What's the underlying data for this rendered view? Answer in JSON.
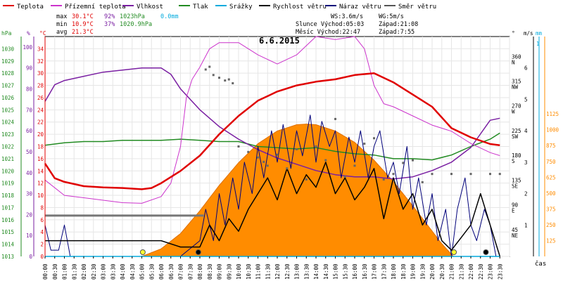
{
  "legend": [
    {
      "label": "Teplota",
      "color": "#e00000"
    },
    {
      "label": "Přízemní teplota",
      "color": "#cc33cc"
    },
    {
      "label": "Vlhkost",
      "color": "#7a1fa2"
    },
    {
      "label": "Tlak",
      "color": "#228b22"
    },
    {
      "label": "Srážky",
      "color": "#00aadd"
    },
    {
      "label": "Rychlost větru",
      "color": "#000000"
    },
    {
      "label": "Náraz větru",
      "color": "#00007a"
    },
    {
      "label": "Směr větru",
      "color": "#555555"
    }
  ],
  "stats": {
    "max_label": "max",
    "max_temp": "30.1°C",
    "max_hum": "92%",
    "max_press": "1023hPa",
    "max_rain": "0.0mm",
    "min_label": "min",
    "min_temp": "10.9°C",
    "min_hum": "37%",
    "min_press": "1020.9hPa",
    "avg_label": "avg",
    "avg_temp": "21.3°C"
  },
  "wind_info": {
    "ws": "WS:3.6m/s",
    "wg": "WG:5m/s"
  },
  "sun_info": {
    "slunce": "Slunce Východ:05:03",
    "slunce_zapad": "Západ:21:08",
    "mesic": "Měsíc Východ:22:47",
    "mesic_zapad": "Západ:7:55"
  },
  "chart_data": {
    "type": "line",
    "title": "6.6.2015",
    "xlabel": "čas",
    "x_ticks": [
      "00:00",
      "00:30",
      "01:00",
      "01:30",
      "02:00",
      "02:30",
      "03:00",
      "03:30",
      "04:00",
      "04:30",
      "05:00",
      "05:30",
      "06:00",
      "06:30",
      "07:00",
      "07:30",
      "08:00",
      "08:30",
      "09:00",
      "09:30",
      "10:00",
      "10:30",
      "11:00",
      "11:30",
      "12:00",
      "12:30",
      "13:00",
      "13:30",
      "14:00",
      "14:30",
      "15:00",
      "15:30",
      "16:00",
      "16:30",
      "17:00",
      "17:30",
      "18:00",
      "18:30",
      "19:00",
      "19:30",
      "20:00",
      "20:30",
      "21:00",
      "21:30",
      "22:00",
      "22:30",
      "23:00",
      "23:30"
    ],
    "axes": {
      "pressure": {
        "label": "hPa",
        "min": 1013,
        "max": 1031,
        "ticks": [
          1013,
          1014,
          1015,
          1016,
          1017,
          1018,
          1019,
          1020,
          1021,
          1022,
          1023,
          1024,
          1025,
          1026,
          1027,
          1028,
          1029,
          1030
        ]
      },
      "humidity": {
        "label": "%",
        "min": 0,
        "max": 105,
        "ticks": [
          0,
          10,
          20,
          30,
          40,
          50,
          60,
          70,
          80,
          90,
          100
        ]
      },
      "temperature": {
        "label": "°C",
        "min": 0,
        "max": 36,
        "ticks": [
          0,
          2,
          4,
          6,
          8,
          10,
          12,
          14,
          16,
          18,
          20,
          22,
          24,
          26,
          28,
          30,
          32,
          34
        ]
      },
      "direction": {
        "label": "°",
        "ticks": [
          {
            "v": 45,
            "n": "NE"
          },
          {
            "v": 90,
            "n": "E"
          },
          {
            "v": 135,
            "n": "SE"
          },
          {
            "v": 180,
            "n": "S"
          },
          {
            "v": 225,
            "n": "SW"
          },
          {
            "v": 270,
            "n": "W"
          },
          {
            "v": 315,
            "n": "NW"
          },
          {
            "v": 360,
            "n": "N"
          }
        ]
      },
      "wind": {
        "label": "m/s",
        "ticks": [
          1,
          2,
          3,
          4,
          5,
          6
        ]
      },
      "rain": {
        "label": "mm",
        "ticks": [
          1
        ]
      },
      "solar": {
        "ticks": [
          125,
          250,
          375,
          500,
          625,
          750,
          875,
          1000,
          1125
        ]
      }
    },
    "series": [
      {
        "name": "Teplota",
        "unit": "°C",
        "x": [
          0,
          0.5,
          1,
          2,
          3,
          4,
          5,
          5.5,
          6,
          7,
          8,
          9,
          10,
          11,
          12,
          13,
          14,
          15,
          16,
          17,
          18,
          19,
          20,
          21,
          22,
          23,
          23.5
        ],
        "y": [
          15.2,
          12.8,
          12.2,
          11.5,
          11.3,
          11.2,
          11.0,
          11.2,
          12.0,
          14.0,
          16.5,
          20.0,
          23.0,
          25.5,
          27.0,
          28.0,
          28.6,
          29.0,
          29.7,
          30.0,
          28.5,
          26.5,
          24.5,
          21.0,
          19.5,
          18.4,
          18.2
        ]
      },
      {
        "name": "Přízemní teplota",
        "unit": "°C",
        "x": [
          0,
          1,
          2,
          3,
          4,
          5,
          6,
          6.5,
          7,
          7.3,
          7.6,
          8,
          8.5,
          9,
          10,
          11,
          12,
          13,
          14,
          15,
          16,
          16.5,
          17,
          17.5,
          18,
          19,
          20,
          21,
          21.5,
          22,
          23,
          23.5
        ],
        "y": [
          12.5,
          10.0,
          9.6,
          9.2,
          8.8,
          8.7,
          9.8,
          12.0,
          18.0,
          26.0,
          29.0,
          31.0,
          34.0,
          35.0,
          35.0,
          33.0,
          31.5,
          33.0,
          36.0,
          35.5,
          36.0,
          34.0,
          28.0,
          25.0,
          24.5,
          23.0,
          21.5,
          20.5,
          19.5,
          18.5,
          17.0,
          16.5
        ]
      },
      {
        "name": "Vlhkost",
        "unit": "%",
        "x": [
          0,
          0.5,
          1,
          2,
          3,
          4,
          5,
          6,
          6.5,
          7,
          8,
          9,
          10,
          11,
          12,
          13,
          14,
          15,
          16,
          17,
          18,
          19,
          20,
          21,
          22,
          23,
          23.5
        ],
        "y": [
          74,
          82,
          84,
          86,
          88,
          89,
          90,
          90,
          87,
          80,
          70,
          62,
          56,
          51,
          47,
          44,
          41,
          39,
          38,
          38,
          37,
          38,
          41,
          45,
          52,
          65,
          66
        ]
      },
      {
        "name": "Tlak",
        "unit": "hPa",
        "x": [
          0,
          1,
          2,
          3,
          4,
          5,
          6,
          7,
          8,
          9,
          10,
          11,
          12,
          13,
          14,
          15,
          16,
          17,
          18,
          19,
          20,
          21,
          22,
          23,
          23.5
        ],
        "y": [
          1022.1,
          1022.3,
          1022.4,
          1022.4,
          1022.5,
          1022.5,
          1022.5,
          1022.6,
          1022.5,
          1022.4,
          1022.4,
          1022.0,
          1021.9,
          1021.8,
          1021.9,
          1021.6,
          1021.4,
          1021.3,
          1021.0,
          1021.0,
          1020.9,
          1021.3,
          1022.0,
          1022.6,
          1023.1
        ]
      },
      {
        "name": "Srážky",
        "unit": "mm",
        "x": [
          0,
          23.5
        ],
        "y": [
          0,
          0
        ]
      },
      {
        "name": "Rychlost větru",
        "unit": "m/s",
        "x": [
          0,
          0.5,
          1,
          2,
          3,
          4,
          5,
          6,
          7,
          8,
          8.5,
          9,
          9.5,
          10,
          10.5,
          11,
          11.5,
          12,
          12.5,
          13,
          13.5,
          14,
          14.5,
          15,
          15.5,
          16,
          16.5,
          17,
          17.5,
          18,
          18.5,
          19,
          19.5,
          20,
          20.5,
          21,
          21.5,
          22,
          22.5,
          23,
          23.5
        ],
        "y": [
          0.5,
          0.5,
          0.5,
          0.5,
          0.5,
          0.5,
          0.5,
          0.5,
          0.3,
          0.3,
          1.0,
          0.5,
          1.2,
          0.8,
          1.5,
          2.0,
          2.5,
          1.8,
          2.8,
          2.0,
          2.6,
          2.2,
          3.0,
          2.0,
          2.5,
          1.8,
          2.2,
          2.8,
          1.2,
          2.5,
          1.5,
          2.0,
          1.0,
          1.5,
          0.5,
          0.2,
          0.6,
          1.0,
          2.0,
          1.0,
          0.0
        ]
      },
      {
        "name": "Náraz větru",
        "unit": "m/s",
        "x": [
          0,
          0.3,
          0.7,
          1,
          1.3,
          1.7,
          2,
          3,
          4,
          5,
          6,
          7,
          8,
          8.3,
          8.7,
          9,
          9.3,
          9.7,
          10,
          10.3,
          10.7,
          11,
          11.3,
          11.7,
          12,
          12.3,
          12.7,
          13,
          13.3,
          13.7,
          14,
          14.3,
          14.7,
          15,
          15.3,
          15.7,
          16,
          16.3,
          16.7,
          17,
          17.3,
          17.7,
          18,
          18.3,
          18.7,
          19,
          19.3,
          19.7,
          20,
          20.3,
          20.7,
          21,
          21.3,
          21.7,
          22,
          22.3,
          22.7,
          23,
          23.3,
          23.5
        ],
        "y": [
          1.0,
          0.2,
          0.2,
          1.0,
          0.0,
          0.0,
          0.0,
          0.0,
          0.0,
          0.0,
          0.0,
          0.0,
          0.5,
          1.5,
          0.5,
          2.0,
          1.0,
          2.5,
          1.5,
          3.0,
          2.0,
          3.5,
          2.5,
          4.0,
          3.0,
          4.2,
          2.8,
          4.0,
          3.2,
          4.5,
          3.0,
          4.3,
          3.5,
          4.0,
          2.5,
          3.8,
          3.0,
          4.0,
          2.5,
          3.5,
          4.0,
          2.5,
          3.0,
          2.0,
          3.5,
          1.5,
          2.5,
          1.0,
          2.0,
          0.5,
          1.5,
          0.0,
          1.5,
          2.5,
          1.0,
          0.5,
          1.5,
          1.0,
          0.0,
          0.0
        ]
      },
      {
        "name": "Směr větru",
        "unit": "°",
        "x": [
          8.3,
          8.5,
          8.7,
          9.0,
          9.3,
          9.5,
          9.7,
          10,
          10.5,
          11,
          11.3,
          11.5,
          12,
          12.5,
          13,
          13.5,
          14,
          14.5,
          15,
          15.5,
          16,
          16.5,
          17,
          17.5,
          18,
          18.5,
          19,
          19.5,
          20,
          21,
          22,
          23,
          23.5
        ],
        "y": [
          340,
          345,
          330,
          325,
          320,
          322,
          315,
          200,
          190,
          180,
          172,
          165,
          185,
          160,
          195,
          140,
          200,
          175,
          250,
          145,
          165,
          205,
          215,
          140,
          150,
          170,
          175,
          135,
          150,
          150,
          150,
          150,
          150
        ]
      }
    ],
    "solar_radiation": {
      "x": [
        5.0,
        6,
        7,
        8,
        9,
        10,
        11,
        12,
        13,
        13.5,
        14,
        15,
        16,
        17,
        18,
        19,
        20,
        20.5,
        21.1
      ],
      "y": [
        0,
        60,
        180,
        360,
        560,
        740,
        890,
        990,
        1040,
        1045,
        1040,
        990,
        900,
        760,
        590,
        400,
        200,
        100,
        0
      ]
    },
    "markers": [
      {
        "name": "sunrise",
        "x": 5.05
      },
      {
        "name": "moonset",
        "x": 7.92
      },
      {
        "name": "sunset",
        "x": 21.13
      },
      {
        "name": "moonrise",
        "x": 22.78
      }
    ]
  }
}
